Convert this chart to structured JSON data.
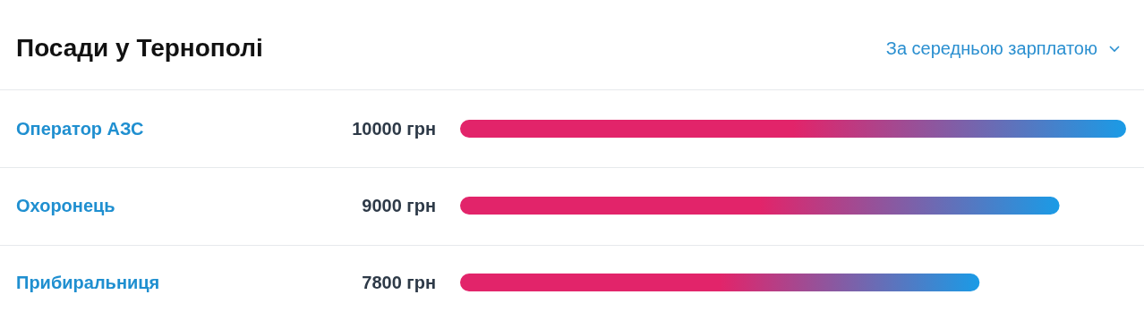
{
  "chart_data": {
    "type": "bar",
    "orientation": "horizontal",
    "title": "Посади у Тернополі",
    "subtitle": "За середньою зарплатою",
    "categories": [
      "Оператор АЗС",
      "Охоронець",
      "Прибиральниця"
    ],
    "values": [
      10000,
      9000,
      7800
    ],
    "value_labels": [
      "10000 грн",
      "9000 грн",
      "7800 грн"
    ],
    "color": "#e2246a"
  }
}
